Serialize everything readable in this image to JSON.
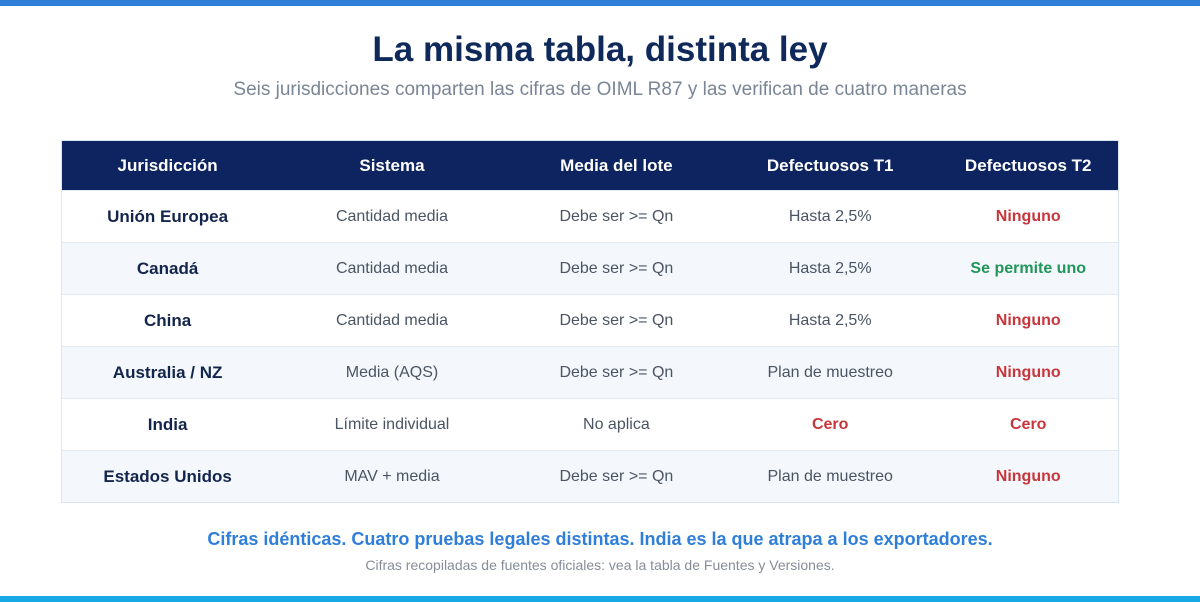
{
  "colors": {
    "accent_bar_top": "#2f7fd9",
    "accent_bar_bottom": "#17a9e6",
    "header_bg": "#0d2460",
    "title": "#0f2a5a",
    "status_bad": "#c8363b",
    "status_good": "#21955a",
    "takeaway": "#2f7fd9"
  },
  "title": "La misma tabla, distinta ley",
  "subtitle": "Seis jurisdicciones comparten las cifras de OIML R87 y las verifican de cuatro maneras",
  "table": {
    "headers": [
      "Jurisdicción",
      "Sistema",
      "Media del lote",
      "Defectuosos T1",
      "Defectuosos T2"
    ],
    "rows": [
      {
        "jurisdiccion": "Unión Europea",
        "sistema": "Cantidad media",
        "media": "Debe ser >= Qn",
        "t1": "Hasta 2,5%",
        "t1_status": "normal",
        "t2": "Ninguno",
        "t2_status": "bad"
      },
      {
        "jurisdiccion": "Canadá",
        "sistema": "Cantidad media",
        "media": "Debe ser >= Qn",
        "t1": "Hasta 2,5%",
        "t1_status": "normal",
        "t2": "Se permite uno",
        "t2_status": "good"
      },
      {
        "jurisdiccion": "China",
        "sistema": "Cantidad media",
        "media": "Debe ser >= Qn",
        "t1": "Hasta 2,5%",
        "t1_status": "normal",
        "t2": "Ninguno",
        "t2_status": "bad"
      },
      {
        "jurisdiccion": "Australia / NZ",
        "sistema": "Media (AQS)",
        "media": "Debe ser >= Qn",
        "t1": "Plan de muestreo",
        "t1_status": "normal",
        "t2": "Ninguno",
        "t2_status": "bad"
      },
      {
        "jurisdiccion": "India",
        "sistema": "Límite individual",
        "media": "No aplica",
        "t1": "Cero",
        "t1_status": "bad",
        "t2": "Cero",
        "t2_status": "bad"
      },
      {
        "jurisdiccion": "Estados Unidos",
        "sistema": "MAV + media",
        "media": "Debe ser >= Qn",
        "t1": "Plan de muestreo",
        "t1_status": "normal",
        "t2": "Ninguno",
        "t2_status": "bad"
      }
    ]
  },
  "takeaway": "Cifras idénticas. Cuatro pruebas legales distintas. India es la que atrapa a los exportadores.",
  "footnote": "Cifras recopiladas de fuentes oficiales: vea la tabla de Fuentes y Versiones."
}
